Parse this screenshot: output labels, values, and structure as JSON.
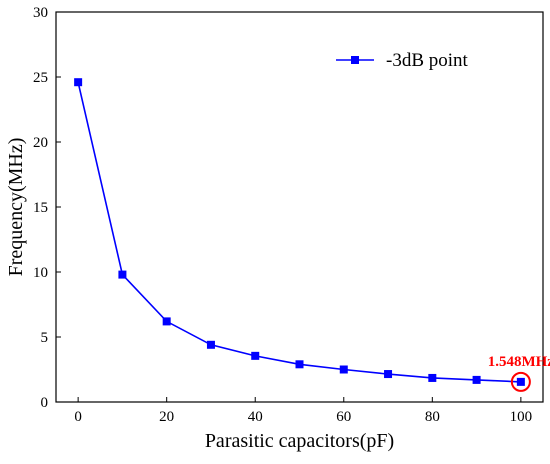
{
  "chart_data": {
    "type": "line",
    "xlabel": "Parasitic capacitors(pF)",
    "ylabel": "Frequency(MHz)",
    "xlim": [
      -5,
      105
    ],
    "ylim": [
      0,
      30
    ],
    "xticks": [
      0,
      20,
      40,
      60,
      80,
      100
    ],
    "yticks": [
      0,
      5,
      10,
      15,
      20,
      25,
      30
    ],
    "grid": false,
    "legend_position": "top-right",
    "series": [
      {
        "name": "-3dB point",
        "color": "#0000ff",
        "marker": "square",
        "x": [
          0,
          10,
          20,
          30,
          40,
          50,
          60,
          70,
          80,
          90,
          100
        ],
        "y": [
          24.6,
          9.8,
          6.2,
          4.4,
          3.55,
          2.9,
          2.5,
          2.15,
          1.85,
          1.7,
          1.548
        ]
      }
    ],
    "annotation": {
      "text": "1.548MHz",
      "x": 100,
      "y": 1.548,
      "color": "#ff0000",
      "marker": "circle"
    }
  }
}
